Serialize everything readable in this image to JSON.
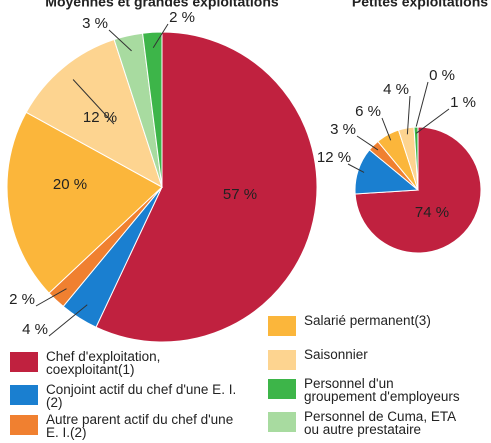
{
  "legend": {
    "categories": [
      "Chef d'exploitation, coexploitant(1)",
      "Conjoint actif du chef d'une E. I.(2)",
      "Autre parent actif du chef d'une E. I.(2)",
      "Salarié permanent(3)",
      "Saisonnier",
      "Personnel de Cuma, ETA ou autre prestataire",
      "Personnel d'un groupement d'employeurs"
    ],
    "colors": [
      "#c0213f",
      "#1a7fd0",
      "#f08030",
      "#fbb63b",
      "#fdd490",
      "#a8dba0",
      "#3db549"
    ]
  },
  "chart_data": [
    {
      "type": "pie",
      "title": "Moyennes et grandes exploitations",
      "values": [
        57,
        4,
        2,
        20,
        12,
        3,
        2
      ],
      "value_labels": [
        "57 %",
        "4 %",
        "2 %",
        "20 %",
        "12 %",
        "3 %",
        "2 %"
      ]
    },
    {
      "type": "pie",
      "title": "Petites exploitations",
      "values": [
        74,
        12,
        3,
        6,
        4,
        0,
        1
      ],
      "value_labels": [
        "74 %",
        "12 %",
        "3 %",
        "6 %",
        "4 %",
        "0 %",
        "1 %"
      ]
    }
  ]
}
